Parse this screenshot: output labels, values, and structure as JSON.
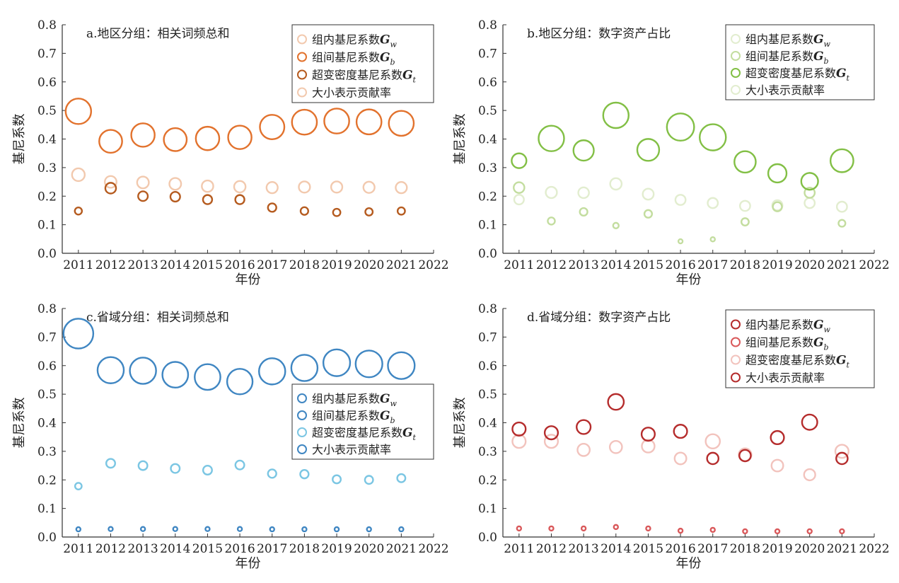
{
  "charts": [
    {
      "type": "scatter",
      "title": "a.地区分组：相关词频总和",
      "xlabel": "年份",
      "ylabel": "基尼系数",
      "xlim": [
        2010.5,
        2022
      ],
      "ylim": [
        0,
        0.8
      ],
      "xticks": [
        2011,
        2012,
        2013,
        2014,
        2015,
        2016,
        2017,
        2018,
        2019,
        2020,
        2021,
        2022
      ],
      "yticks": [
        0,
        0.1,
        0.2,
        0.3,
        0.4,
        0.5,
        0.6,
        0.7,
        0.8
      ],
      "legend_position": "top-right",
      "legend": [
        {
          "text": "组内基尼系数",
          "symbol": "G",
          "sub": "w",
          "color": "#f2c9ae"
        },
        {
          "text": "组间基尼系数",
          "symbol": "G",
          "sub": "b",
          "color": "#e2722d"
        },
        {
          "text": "超变密度基尼系数",
          "symbol": "G",
          "sub": "t",
          "color": "#b55b1f"
        },
        {
          "text": "大小表示贡献率",
          "symbol": "",
          "sub": "",
          "color": "#f2c9ae"
        }
      ],
      "series": [
        {
          "key": "Gw",
          "color": "#f2c9ae",
          "points": [
            [
              2011,
              0.275,
              0.5
            ],
            [
              2012,
              0.25,
              0.46
            ],
            [
              2013,
              0.248,
              0.46
            ],
            [
              2014,
              0.243,
              0.46
            ],
            [
              2015,
              0.235,
              0.45
            ],
            [
              2016,
              0.233,
              0.45
            ],
            [
              2017,
              0.23,
              0.44
            ],
            [
              2018,
              0.232,
              0.44
            ],
            [
              2019,
              0.232,
              0.44
            ],
            [
              2020,
              0.231,
              0.44
            ],
            [
              2021,
              0.23,
              0.44
            ]
          ]
        },
        {
          "key": "Gb",
          "color": "#e2722d",
          "points": [
            [
              2011,
              0.497,
              1.0
            ],
            [
              2012,
              0.392,
              0.9
            ],
            [
              2013,
              0.414,
              0.92
            ],
            [
              2014,
              0.398,
              0.9
            ],
            [
              2015,
              0.402,
              0.92
            ],
            [
              2016,
              0.406,
              0.92
            ],
            [
              2017,
              0.442,
              0.96
            ],
            [
              2018,
              0.459,
              0.98
            ],
            [
              2019,
              0.463,
              0.98
            ],
            [
              2020,
              0.46,
              0.98
            ],
            [
              2021,
              0.455,
              0.98
            ]
          ]
        },
        {
          "key": "Gt",
          "color": "#b55b1f",
          "points": [
            [
              2011,
              0.148,
              0.28
            ],
            [
              2012,
              0.228,
              0.42
            ],
            [
              2013,
              0.2,
              0.38
            ],
            [
              2014,
              0.198,
              0.38
            ],
            [
              2015,
              0.188,
              0.36
            ],
            [
              2016,
              0.188,
              0.36
            ],
            [
              2017,
              0.16,
              0.33
            ],
            [
              2018,
              0.148,
              0.3
            ],
            [
              2019,
              0.143,
              0.29
            ],
            [
              2020,
              0.145,
              0.29
            ],
            [
              2021,
              0.148,
              0.29
            ]
          ]
        }
      ]
    },
    {
      "type": "scatter",
      "title": "b.地区分组：数字资产占比",
      "xlabel": "年份",
      "ylabel": "基尼系数",
      "xlim": [
        2010.5,
        2022
      ],
      "ylim": [
        0,
        0.8
      ],
      "xticks": [
        2011,
        2012,
        2013,
        2014,
        2015,
        2016,
        2017,
        2018,
        2019,
        2020,
        2021,
        2022
      ],
      "yticks": [
        0,
        0.1,
        0.2,
        0.3,
        0.4,
        0.5,
        0.6,
        0.7,
        0.8
      ],
      "legend_position": "top-right",
      "legend": [
        {
          "text": "组内基尼系数",
          "symbol": "G",
          "sub": "w",
          "color": "#e2edcf"
        },
        {
          "text": "组间基尼系数",
          "symbol": "G",
          "sub": "b",
          "color": "#c3dd9f"
        },
        {
          "text": "超变密度基尼系数",
          "symbol": "G",
          "sub": "t",
          "color": "#82bf45"
        },
        {
          "text": "大小表示贡献率",
          "symbol": "",
          "sub": "",
          "color": "#e2edcf"
        }
      ],
      "series": [
        {
          "key": "Gw",
          "color": "#e2edcf",
          "points": [
            [
              2011,
              0.188,
              0.38
            ],
            [
              2012,
              0.213,
              0.44
            ],
            [
              2013,
              0.212,
              0.42
            ],
            [
              2014,
              0.243,
              0.45
            ],
            [
              2015,
              0.207,
              0.43
            ],
            [
              2016,
              0.187,
              0.4
            ],
            [
              2017,
              0.176,
              0.4
            ],
            [
              2018,
              0.166,
              0.4
            ],
            [
              2019,
              0.168,
              0.4
            ],
            [
              2020,
              0.176,
              0.4
            ],
            [
              2021,
              0.163,
              0.4
            ]
          ]
        },
        {
          "key": "Gb",
          "color": "#c3dd9f",
          "points": [
            [
              2011,
              0.23,
              0.42
            ],
            [
              2012,
              0.113,
              0.28
            ],
            [
              2013,
              0.145,
              0.3
            ],
            [
              2014,
              0.097,
              0.22
            ],
            [
              2015,
              0.138,
              0.3
            ],
            [
              2016,
              0.042,
              0.15
            ],
            [
              2017,
              0.049,
              0.17
            ],
            [
              2018,
              0.11,
              0.29
            ],
            [
              2019,
              0.163,
              0.36
            ],
            [
              2020,
              0.212,
              0.4
            ],
            [
              2021,
              0.105,
              0.27
            ]
          ]
        },
        {
          "key": "Gt",
          "color": "#82bf45",
          "points": [
            [
              2011,
              0.324,
              0.58
            ],
            [
              2012,
              0.402,
              1.0
            ],
            [
              2013,
              0.36,
              0.8
            ],
            [
              2014,
              0.483,
              1.0
            ],
            [
              2015,
              0.362,
              0.86
            ],
            [
              2016,
              0.442,
              1.07
            ],
            [
              2017,
              0.406,
              1.03
            ],
            [
              2018,
              0.32,
              0.84
            ],
            [
              2019,
              0.28,
              0.72
            ],
            [
              2020,
              0.252,
              0.66
            ],
            [
              2021,
              0.324,
              0.9
            ]
          ]
        }
      ]
    },
    {
      "type": "scatter",
      "title": "c.省域分组：相关词频总和",
      "xlabel": "年份",
      "ylabel": "基尼系数",
      "xlim": [
        2010.5,
        2022
      ],
      "ylim": [
        0,
        0.8
      ],
      "xticks": [
        2011,
        2012,
        2013,
        2014,
        2015,
        2016,
        2017,
        2018,
        2019,
        2020,
        2021,
        2022
      ],
      "yticks": [
        0,
        0.1,
        0.2,
        0.3,
        0.4,
        0.5,
        0.6,
        0.7,
        0.8
      ],
      "legend_position": "center-right",
      "legend": [
        {
          "text": "组内基尼系数",
          "symbol": "G",
          "sub": "w",
          "color": "#3f86c2"
        },
        {
          "text": "组间基尼系数",
          "symbol": "G",
          "sub": "b",
          "color": "#3f86c2"
        },
        {
          "text": "超变密度基尼系数",
          "symbol": "G",
          "sub": "t",
          "color": "#7bc6e3"
        },
        {
          "text": "大小表示贡献率",
          "symbol": "",
          "sub": "",
          "color": "#3f86c2"
        }
      ],
      "series": [
        {
          "key": "Gw",
          "color": "#3f86c2",
          "points": [
            [
              2011,
              0.712,
              1.17
            ],
            [
              2012,
              0.584,
              1.03
            ],
            [
              2013,
              0.582,
              1.03
            ],
            [
              2014,
              0.568,
              1.01
            ],
            [
              2015,
              0.56,
              1.01
            ],
            [
              2016,
              0.544,
              1.0
            ],
            [
              2017,
              0.58,
              1.03
            ],
            [
              2018,
              0.592,
              1.03
            ],
            [
              2019,
              0.61,
              1.05
            ],
            [
              2020,
              0.606,
              1.05
            ],
            [
              2021,
              0.6,
              1.05
            ]
          ]
        },
        {
          "key": "Gb",
          "color": "#3f86c2",
          "points": [
            [
              2011,
              0.027,
              0.13
            ],
            [
              2012,
              0.028,
              0.13
            ],
            [
              2013,
              0.028,
              0.13
            ],
            [
              2014,
              0.028,
              0.13
            ],
            [
              2015,
              0.028,
              0.13
            ],
            [
              2016,
              0.028,
              0.13
            ],
            [
              2017,
              0.027,
              0.13
            ],
            [
              2018,
              0.027,
              0.13
            ],
            [
              2019,
              0.027,
              0.13
            ],
            [
              2020,
              0.027,
              0.13
            ],
            [
              2021,
              0.027,
              0.13
            ]
          ]
        },
        {
          "key": "Gt",
          "color": "#7bc6e3",
          "points": [
            [
              2011,
              0.178,
              0.26
            ],
            [
              2012,
              0.258,
              0.35
            ],
            [
              2013,
              0.25,
              0.35
            ],
            [
              2014,
              0.24,
              0.35
            ],
            [
              2015,
              0.234,
              0.35
            ],
            [
              2016,
              0.252,
              0.35
            ],
            [
              2017,
              0.222,
              0.33
            ],
            [
              2018,
              0.22,
              0.33
            ],
            [
              2019,
              0.202,
              0.32
            ],
            [
              2020,
              0.2,
              0.32
            ],
            [
              2021,
              0.206,
              0.32
            ]
          ]
        }
      ]
    },
    {
      "type": "scatter",
      "title": "d.省域分组：数字资产占比",
      "xlabel": "年份",
      "ylabel": "基尼系数",
      "xlim": [
        2010.5,
        2022
      ],
      "ylim": [
        0,
        0.8
      ],
      "xticks": [
        2011,
        2012,
        2013,
        2014,
        2015,
        2016,
        2017,
        2018,
        2019,
        2020,
        2021,
        2022
      ],
      "yticks": [
        0,
        0.1,
        0.2,
        0.3,
        0.4,
        0.5,
        0.6,
        0.7,
        0.8
      ],
      "legend_position": "top-right",
      "legend": [
        {
          "text": "组内基尼系数",
          "symbol": "G",
          "sub": "w",
          "color": "#b52c2c"
        },
        {
          "text": "组间基尼系数",
          "symbol": "G",
          "sub": "b",
          "color": "#d9585a"
        },
        {
          "text": "超变密度基尼系数",
          "symbol": "G",
          "sub": "t",
          "color": "#f2c3bd"
        },
        {
          "text": "大小表示贡献率",
          "symbol": "",
          "sub": "",
          "color": "#b52c2c"
        }
      ],
      "series": [
        {
          "key": "Gt",
          "color": "#f2c3bd",
          "points": [
            [
              2011,
              0.335,
              0.52
            ],
            [
              2012,
              0.335,
              0.52
            ],
            [
              2013,
              0.305,
              0.48
            ],
            [
              2014,
              0.315,
              0.48
            ],
            [
              2015,
              0.318,
              0.5
            ],
            [
              2016,
              0.275,
              0.46
            ],
            [
              2017,
              0.335,
              0.56
            ],
            [
              2018,
              0.288,
              0.5
            ],
            [
              2019,
              0.25,
              0.46
            ],
            [
              2020,
              0.218,
              0.44
            ],
            [
              2021,
              0.3,
              0.52
            ]
          ]
        },
        {
          "key": "Gb",
          "color": "#d9585a",
          "points": [
            [
              2011,
              0.03,
              0.13
            ],
            [
              2012,
              0.03,
              0.13
            ],
            [
              2013,
              0.03,
              0.13
            ],
            [
              2014,
              0.035,
              0.13
            ],
            [
              2015,
              0.03,
              0.13
            ],
            [
              2016,
              0.022,
              0.12
            ],
            [
              2017,
              0.025,
              0.12
            ],
            [
              2018,
              0.02,
              0.12
            ],
            [
              2019,
              0.02,
              0.12
            ],
            [
              2020,
              0.02,
              0.12
            ],
            [
              2021,
              0.02,
              0.12
            ]
          ]
        },
        {
          "key": "Gw",
          "color": "#b52c2c",
          "points": [
            [
              2011,
              0.378,
              0.52
            ],
            [
              2012,
              0.365,
              0.52
            ],
            [
              2013,
              0.385,
              0.55
            ],
            [
              2014,
              0.473,
              0.62
            ],
            [
              2015,
              0.36,
              0.52
            ],
            [
              2016,
              0.37,
              0.52
            ],
            [
              2017,
              0.275,
              0.45
            ],
            [
              2018,
              0.285,
              0.45
            ],
            [
              2019,
              0.348,
              0.52
            ],
            [
              2020,
              0.402,
              0.6
            ],
            [
              2021,
              0.275,
              0.45
            ]
          ]
        }
      ]
    }
  ]
}
